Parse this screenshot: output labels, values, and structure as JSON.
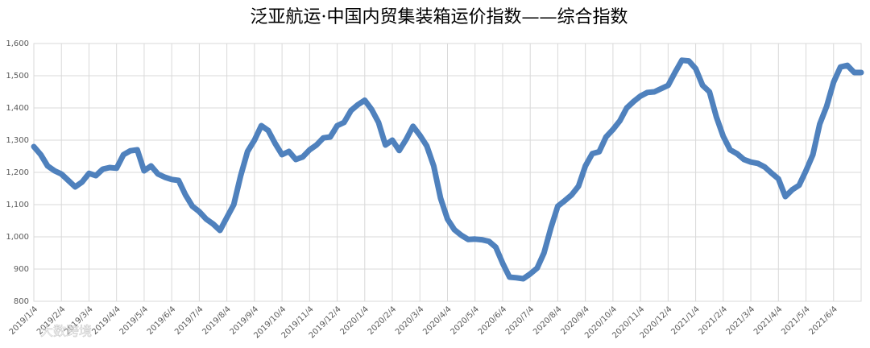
{
  "chart_data": {
    "type": "line",
    "title": "泛亚航运·中国内贸集装箱运价指数——综合指数",
    "watermark": "大数跨境",
    "categories": [
      "2019/1/4",
      null,
      null,
      null,
      "2019/2/4",
      null,
      null,
      null,
      "2019/3/4",
      null,
      null,
      null,
      "2019/4/4",
      null,
      null,
      null,
      "2019/5/4",
      null,
      null,
      null,
      "2019/6/4",
      null,
      null,
      null,
      "2019/7/4",
      null,
      null,
      null,
      "2019/8/4",
      null,
      null,
      null,
      "2019/9/4",
      null,
      null,
      null,
      "2019/10/4",
      null,
      null,
      null,
      "2019/11/4",
      null,
      null,
      null,
      "2019/12/4",
      null,
      null,
      null,
      "2020/1/4",
      null,
      null,
      null,
      "2020/2/4",
      null,
      null,
      null,
      "2020/3/4",
      null,
      null,
      null,
      "2020/4/4",
      null,
      null,
      null,
      "2020/5/4",
      null,
      null,
      null,
      "2020/6/4",
      null,
      null,
      null,
      "2020/7/4",
      null,
      null,
      null,
      "2020/8/4",
      null,
      null,
      null,
      "2020/9/4",
      null,
      null,
      null,
      "2020/10/4",
      null,
      null,
      null,
      "2020/11/4",
      null,
      null,
      null,
      "2020/12/4",
      null,
      null,
      null,
      "2021/1/4",
      null,
      null,
      null,
      "2021/2/4",
      null,
      null,
      null,
      "2021/3/4",
      null,
      null,
      null,
      "2021/4/4",
      null,
      null,
      null,
      "2021/5/4",
      null,
      null,
      null,
      "2021/6/4",
      null,
      null,
      null,
      null
    ],
    "values": [
      1280,
      1255,
      1220,
      1205,
      1195,
      1175,
      1155,
      1170,
      1197,
      1190,
      1210,
      1215,
      1213,
      1255,
      1267,
      1270,
      1205,
      1220,
      1195,
      1185,
      1178,
      1175,
      1130,
      1095,
      1078,
      1055,
      1040,
      1020,
      1060,
      1100,
      1190,
      1265,
      1300,
      1345,
      1330,
      1290,
      1255,
      1265,
      1240,
      1248,
      1270,
      1285,
      1307,
      1310,
      1345,
      1355,
      1392,
      1410,
      1424,
      1395,
      1355,
      1285,
      1300,
      1268,
      1302,
      1343,
      1315,
      1282,
      1220,
      1120,
      1055,
      1022,
      1005,
      992,
      993,
      991,
      986,
      968,
      918,
      875,
      873,
      870,
      885,
      903,
      950,
      1028,
      1095,
      1112,
      1130,
      1157,
      1220,
      1258,
      1264,
      1310,
      1333,
      1360,
      1400,
      1420,
      1437,
      1448,
      1450,
      1460,
      1470,
      1510,
      1548,
      1546,
      1522,
      1470,
      1450,
      1372,
      1312,
      1270,
      1258,
      1240,
      1232,
      1228,
      1217,
      1198,
      1180,
      1125,
      1146,
      1160,
      1205,
      1255,
      1350,
      1405,
      1480,
      1527,
      1532,
      1510,
      1510
    ],
    "color": "#4f81bd",
    "ylim": [
      800,
      1600
    ],
    "yticks": [
      800,
      900,
      {
        "value": 1000,
        "label": "1,000"
      },
      {
        "value": 1100,
        "label": "1,100"
      },
      {
        "value": 1200,
        "label": "1,200"
      },
      {
        "value": 1300,
        "label": "1,300"
      },
      {
        "value": 1400,
        "label": "1,400"
      },
      {
        "value": 1500,
        "label": "1,500"
      },
      {
        "value": 1600,
        "label": "1,600"
      }
    ],
    "grid": true
  }
}
